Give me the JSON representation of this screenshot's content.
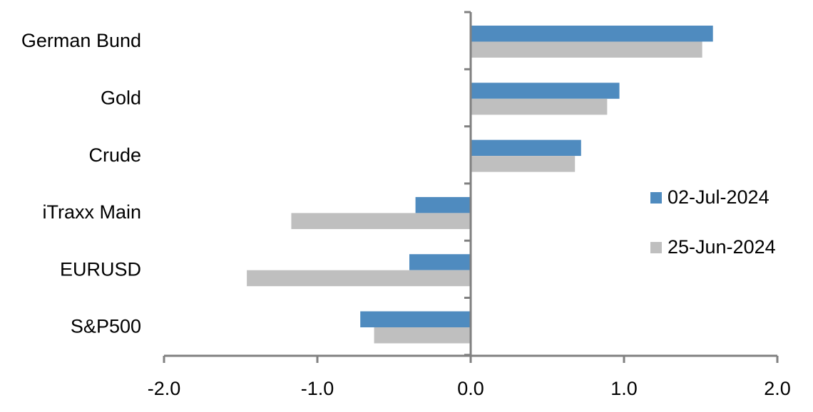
{
  "chart_data": {
    "type": "bar",
    "orientation": "horizontal",
    "title": "",
    "xlabel": "",
    "ylabel": "",
    "categories": [
      "German Bund",
      "Gold",
      "Crude",
      "iTraxx Main",
      "EURUSD",
      "S&P500"
    ],
    "series": [
      {
        "name": "02-Jul-2024",
        "color": "#4F8BBF",
        "values": [
          1.58,
          0.97,
          0.72,
          -0.36,
          -0.4,
          -0.72
        ]
      },
      {
        "name": "25-Jun-2024",
        "color": "#BFBFBF",
        "values": [
          1.51,
          0.89,
          0.68,
          -1.17,
          -1.46,
          -0.63
        ]
      }
    ],
    "xlim": [
      -2.0,
      2.0
    ],
    "xticks": [
      -2.0,
      -1.0,
      0.0,
      1.0,
      2.0
    ],
    "xtick_labels": [
      "-2.0",
      "-1.0",
      "0.0",
      "1.0",
      "2.0"
    ],
    "grid": false,
    "legend_position": "right",
    "axis_color": "#808080"
  }
}
